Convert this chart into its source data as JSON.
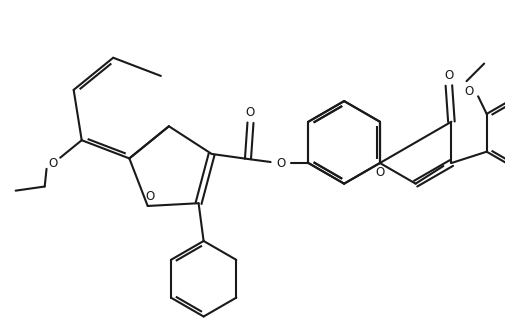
{
  "bg_color": "#ffffff",
  "line_color": "#1a1a1a",
  "line_width": 1.5,
  "figsize": [
    5.07,
    3.2
  ],
  "dpi": 100,
  "xlim": [
    0,
    10
  ],
  "ylim": [
    0,
    6.3
  ]
}
